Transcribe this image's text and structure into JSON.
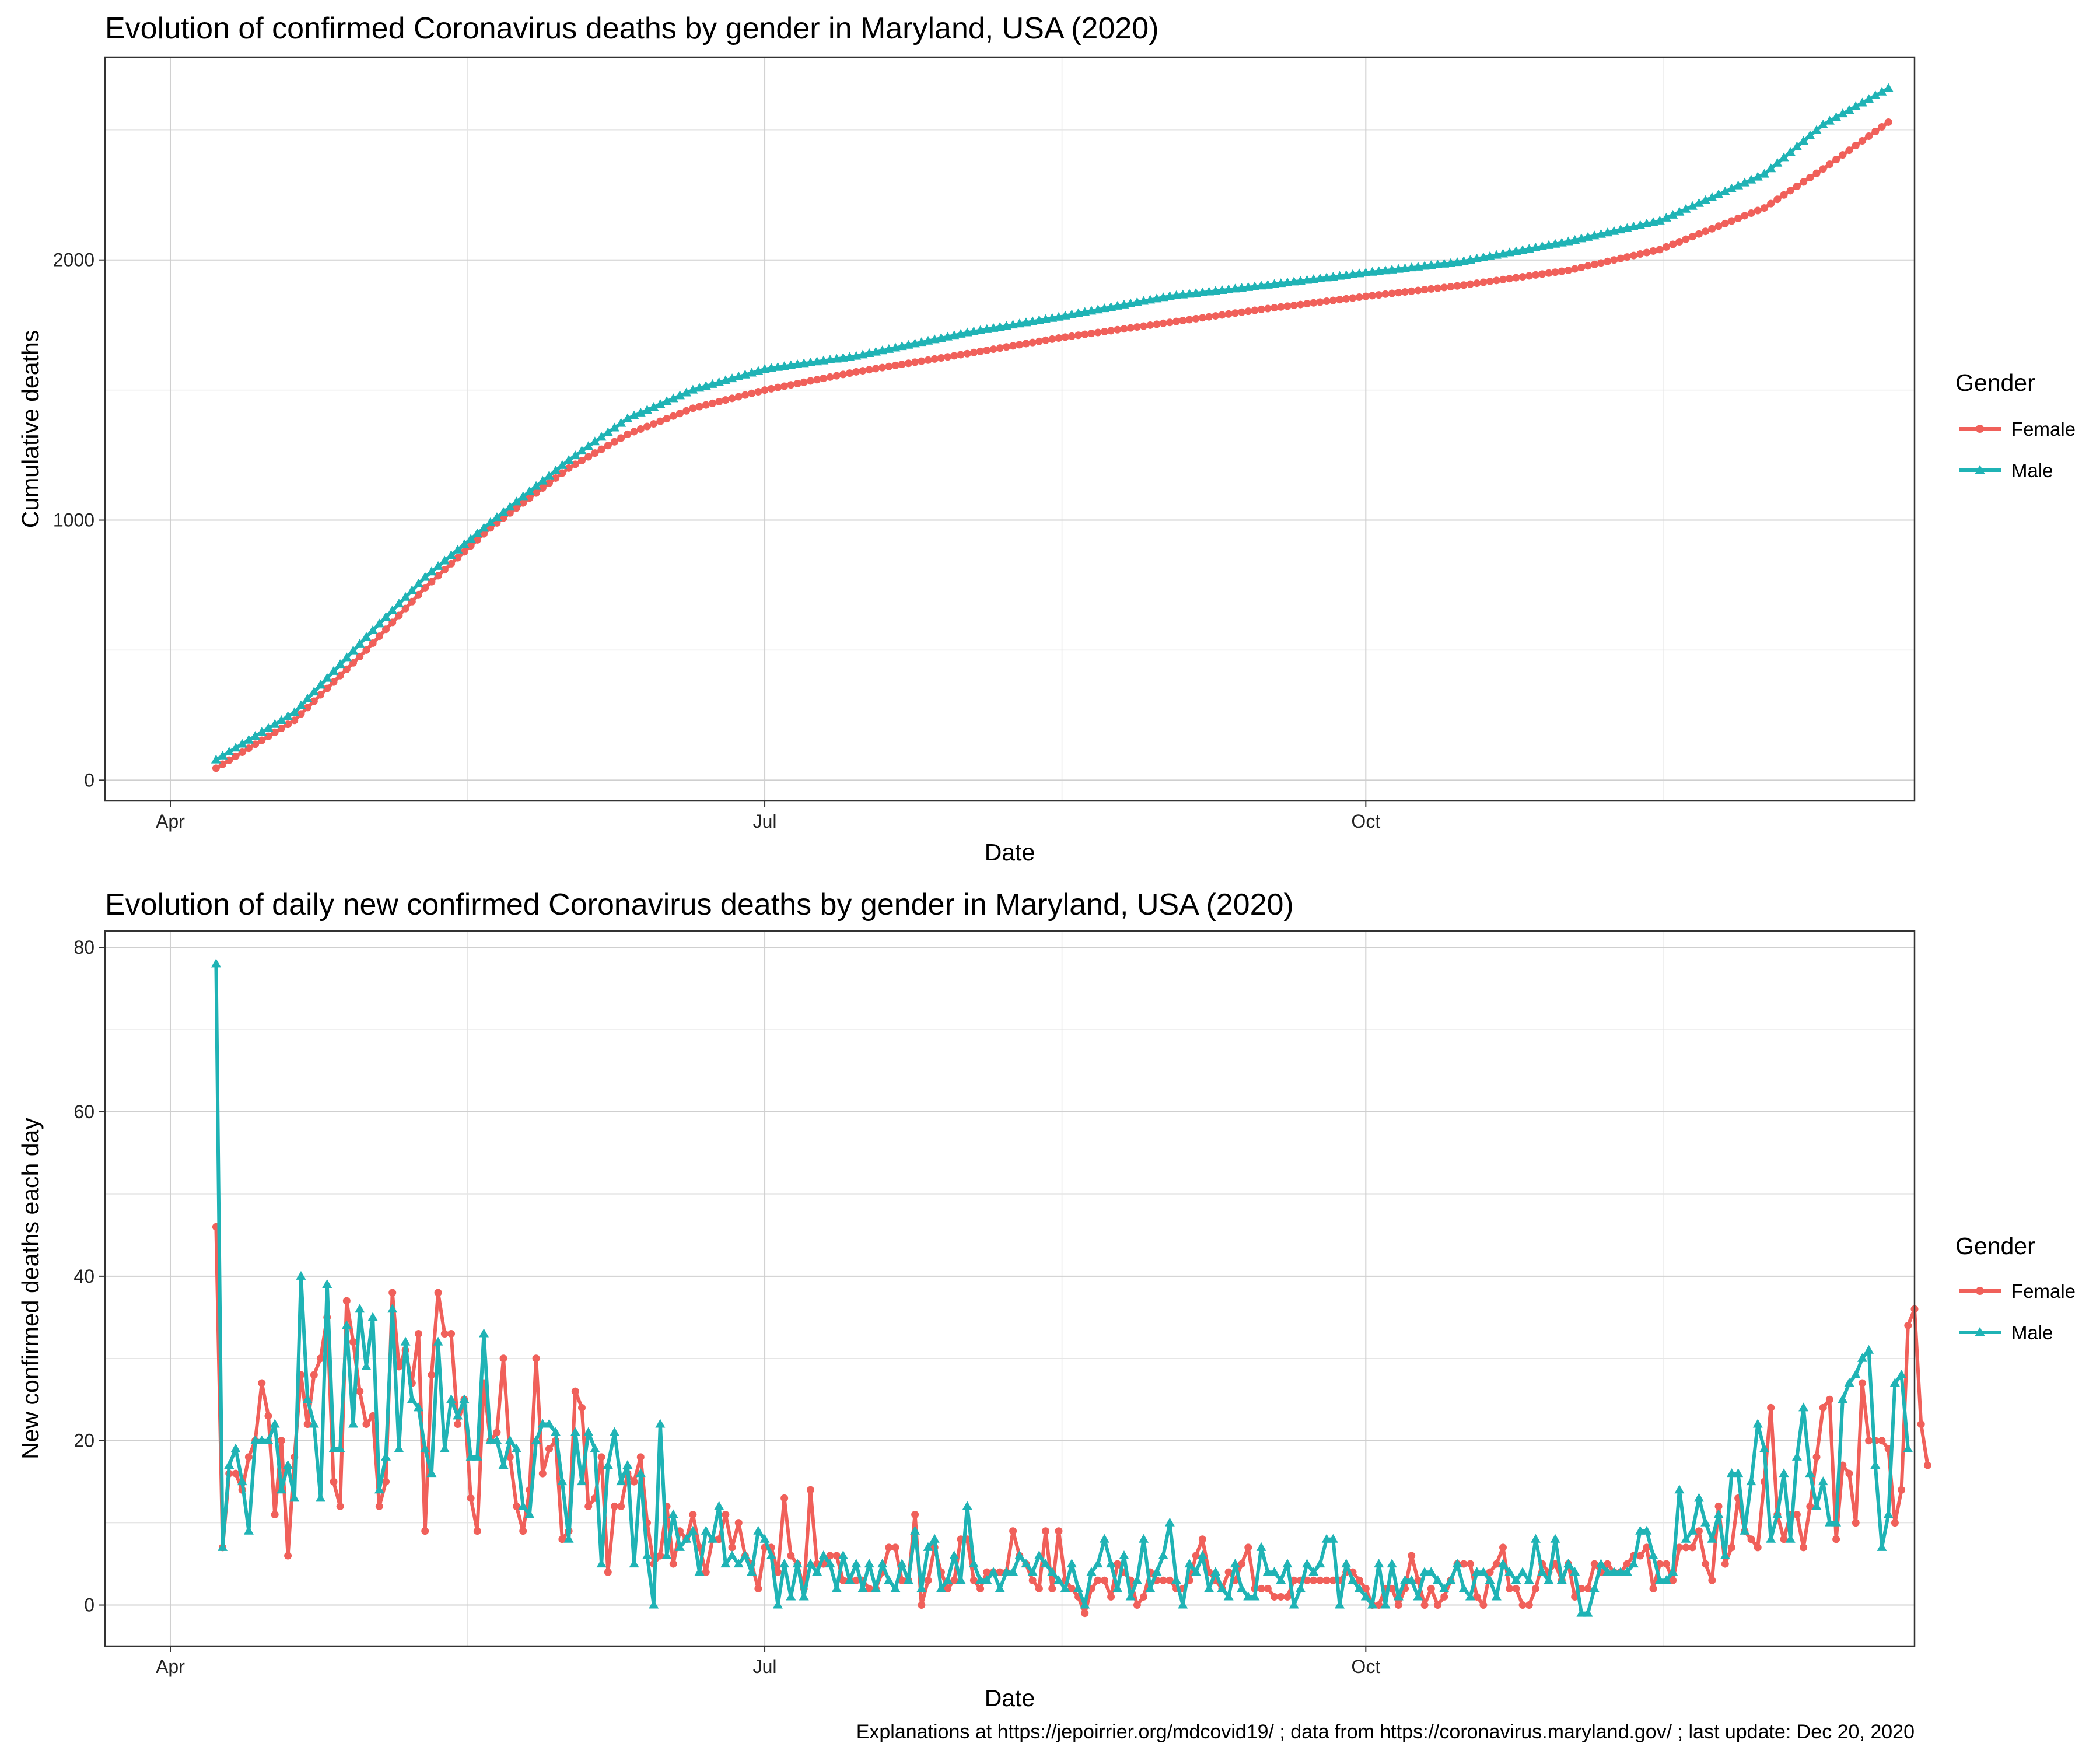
{
  "caption": "Explanations at https://jepoirrier.org/mdcovid19/ ; data from https://coronavirus.maryland.gov/ ; last update: Dec 20, 2020",
  "colors": {
    "Female": "#F0605A",
    "Male": "#1FB3B5"
  },
  "chart_data": [
    {
      "type": "line",
      "title": "Evolution of confirmed Coronavirus deaths by gender in Maryland, USA (2020)",
      "xlabel": "Date",
      "ylabel": "Cumulative deaths",
      "x_ticks": [
        {
          "date": "2020-04-01",
          "label": "Apr"
        },
        {
          "date": "2020-07-01",
          "label": "Jul"
        },
        {
          "date": "2020-10-01",
          "label": "Oct"
        }
      ],
      "y_ticks": [
        0,
        1000,
        2000
      ],
      "xlim": [
        "2020-03-22",
        "2020-12-24"
      ],
      "ylim": [
        -80,
        2780
      ],
      "grid": true,
      "legend": {
        "title": "Gender",
        "position": "right",
        "labels": [
          "Female",
          "Male"
        ]
      },
      "series": [
        {
          "name": "Female",
          "points": [
            [
              "2020-04-08",
              46
            ],
            [
              "2020-04-20",
              230
            ],
            [
              "2020-05-01",
              500
            ],
            [
              "2020-05-10",
              740
            ],
            [
              "2020-05-20",
              970
            ],
            [
              "2020-06-01",
              1200
            ],
            [
              "2020-06-10",
              1330
            ],
            [
              "2020-06-20",
              1430
            ],
            [
              "2020-07-01",
              1500
            ],
            [
              "2020-07-15",
              1570
            ],
            [
              "2020-08-01",
              1640
            ],
            [
              "2020-08-15",
              1700
            ],
            [
              "2020-09-01",
              1760
            ],
            [
              "2020-09-15",
              1810
            ],
            [
              "2020-10-01",
              1860
            ],
            [
              "2020-10-15",
              1900
            ],
            [
              "2020-11-01",
              1960
            ],
            [
              "2020-11-15",
              2040
            ],
            [
              "2020-12-01",
              2200
            ],
            [
              "2020-12-10",
              2350
            ],
            [
              "2020-12-20",
              2530
            ]
          ]
        },
        {
          "name": "Male",
          "points": [
            [
              "2020-04-08",
              78
            ],
            [
              "2020-04-20",
              260
            ],
            [
              "2020-05-01",
              550
            ],
            [
              "2020-05-10",
              780
            ],
            [
              "2020-05-20",
              990
            ],
            [
              "2020-06-01",
              1230
            ],
            [
              "2020-06-10",
              1390
            ],
            [
              "2020-06-20",
              1500
            ],
            [
              "2020-07-01",
              1580
            ],
            [
              "2020-07-15",
              1630
            ],
            [
              "2020-08-01",
              1720
            ],
            [
              "2020-08-15",
              1780
            ],
            [
              "2020-09-01",
              1860
            ],
            [
              "2020-09-15",
              1900
            ],
            [
              "2020-10-01",
              1950
            ],
            [
              "2020-10-15",
              1990
            ],
            [
              "2020-11-01",
              2070
            ],
            [
              "2020-11-15",
              2150
            ],
            [
              "2020-12-01",
              2330
            ],
            [
              "2020-12-10",
              2520
            ],
            [
              "2020-12-20",
              2660
            ]
          ]
        }
      ]
    },
    {
      "type": "line",
      "title": "Evolution of daily new confirmed Coronavirus deaths by gender in Maryland, USA (2020)",
      "xlabel": "Date",
      "ylabel": "New confirmed deaths each day",
      "x_ticks": [
        {
          "date": "2020-04-01",
          "label": "Apr"
        },
        {
          "date": "2020-07-01",
          "label": "Jul"
        },
        {
          "date": "2020-10-01",
          "label": "Oct"
        }
      ],
      "y_ticks": [
        0,
        20,
        40,
        60,
        80
      ],
      "xlim": [
        "2020-03-22",
        "2020-12-24"
      ],
      "ylim": [
        -5,
        82
      ],
      "grid": true,
      "legend": {
        "title": "Gender",
        "position": "right",
        "labels": [
          "Female",
          "Male"
        ]
      },
      "series": [
        {
          "name": "Female",
          "start": "2020-04-08",
          "values": [
            46,
            7,
            16,
            16,
            14,
            18,
            20,
            27,
            23,
            11,
            20,
            6,
            18,
            28,
            22,
            28,
            30,
            35,
            15,
            12,
            37,
            32,
            26,
            22,
            23,
            12,
            15,
            38,
            29,
            31,
            27,
            33,
            9,
            28,
            38,
            33,
            33,
            22,
            25,
            13,
            9,
            27,
            20,
            21,
            30,
            18,
            12,
            9,
            14,
            30,
            16,
            19,
            20,
            8,
            9,
            26,
            24,
            12,
            13,
            18,
            4,
            12,
            12,
            16,
            15,
            18,
            10,
            5,
            6,
            12,
            5,
            9,
            8,
            11,
            7,
            4,
            8,
            8,
            11,
            7,
            10,
            6,
            5,
            2,
            7,
            7,
            4,
            13,
            6,
            5,
            2,
            14,
            5,
            5,
            6,
            6,
            3,
            3,
            3,
            3,
            2,
            2,
            4,
            7,
            7,
            3,
            3,
            11,
            0,
            3,
            7,
            4,
            2,
            3,
            8,
            8,
            3,
            2,
            4,
            4,
            4,
            4,
            9,
            6,
            5,
            3,
            2,
            9,
            2,
            9,
            3,
            2,
            1,
            -1,
            2,
            3,
            3,
            1,
            5,
            4,
            3,
            0,
            1,
            4,
            3,
            3,
            3,
            2,
            2,
            3,
            6,
            8,
            4,
            3,
            2,
            4,
            3,
            5,
            7,
            2,
            2,
            2,
            1,
            1,
            1,
            3,
            3,
            3,
            3,
            3,
            3,
            3,
            3,
            4,
            4,
            3,
            2,
            0,
            0,
            2,
            2,
            0,
            2,
            6,
            3,
            0,
            2,
            0,
            1,
            3,
            5,
            5,
            5,
            1,
            0,
            4,
            5,
            7,
            2,
            2,
            0,
            0,
            2,
            5,
            4,
            5,
            3,
            5,
            1,
            2,
            2,
            5,
            4,
            5,
            4,
            4,
            5,
            6,
            6,
            7,
            2,
            5,
            5,
            3,
            7,
            7,
            7,
            9,
            5,
            3,
            12,
            5,
            7,
            13,
            9,
            8,
            7,
            15,
            24,
            11,
            8,
            11,
            11,
            7,
            12,
            18,
            24,
            25,
            8,
            17,
            16,
            10,
            27,
            20,
            20,
            20,
            19,
            10,
            14,
            34,
            36,
            22,
            17
          ]
        },
        {
          "name": "Male",
          "start": "2020-04-08",
          "values": [
            78,
            7,
            17,
            19,
            15,
            9,
            20,
            20,
            20,
            22,
            14,
            17,
            13,
            40,
            25,
            22,
            13,
            39,
            19,
            19,
            34,
            22,
            36,
            29,
            35,
            14,
            18,
            36,
            19,
            32,
            25,
            24,
            19,
            16,
            32,
            19,
            25,
            23,
            25,
            18,
            18,
            33,
            20,
            20,
            17,
            20,
            19,
            12,
            11,
            20,
            22,
            22,
            21,
            15,
            8,
            21,
            15,
            21,
            19,
            5,
            17,
            21,
            15,
            17,
            5,
            16,
            6,
            0,
            22,
            6,
            11,
            7,
            8,
            9,
            4,
            9,
            8,
            12,
            5,
            6,
            5,
            6,
            4,
            9,
            8,
            6,
            0,
            5,
            1,
            5,
            1,
            5,
            4,
            6,
            5,
            2,
            6,
            3,
            5,
            2,
            5,
            2,
            5,
            3,
            2,
            5,
            3,
            9,
            2,
            7,
            8,
            2,
            3,
            6,
            3,
            12,
            5,
            3,
            3,
            4,
            2,
            4,
            4,
            6,
            5,
            4,
            6,
            5,
            4,
            3,
            2,
            5,
            2,
            0,
            4,
            5,
            8,
            5,
            2,
            6,
            1,
            3,
            8,
            2,
            4,
            6,
            10,
            3,
            0,
            5,
            4,
            6,
            2,
            4,
            2,
            1,
            5,
            2,
            1,
            1,
            7,
            4,
            4,
            3,
            5,
            0,
            2,
            5,
            4,
            5,
            8,
            8,
            0,
            5,
            3,
            2,
            1,
            0,
            5,
            0,
            5,
            1,
            3,
            3,
            1,
            4,
            4,
            3,
            2,
            3,
            5,
            2,
            1,
            4,
            4,
            3,
            1,
            5,
            4,
            3,
            4,
            3,
            8,
            4,
            3,
            8,
            3,
            5,
            4,
            -1,
            -1,
            2,
            5,
            4,
            4,
            4,
            4,
            5,
            9,
            9,
            6,
            3,
            3,
            4,
            14,
            8,
            9,
            13,
            10,
            8,
            11,
            6,
            16,
            16,
            9,
            15,
            22,
            19,
            8,
            11,
            16,
            8,
            18,
            24,
            16,
            12,
            15,
            10,
            10,
            25,
            27,
            28,
            30,
            31,
            17,
            7,
            11,
            27,
            28,
            19
          ]
        }
      ]
    }
  ]
}
